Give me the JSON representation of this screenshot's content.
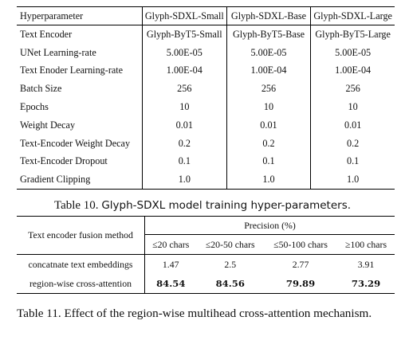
{
  "table10": {
    "headers": [
      "Hyperparameter",
      "Glyph-SDXL-Small",
      "Glyph-SDXL-Base",
      "Glyph-SDXL-Large"
    ],
    "rows": [
      [
        "Text Encoder",
        "Glyph-ByT5-Small",
        "Glyph-ByT5-Base",
        "Glyph-ByT5-Large"
      ],
      [
        "UNet Learning-rate",
        "5.00E-05",
        "5.00E-05",
        "5.00E-05"
      ],
      [
        "Text Enoder Learning-rate",
        "1.00E-04",
        "1.00E-04",
        "1.00E-04"
      ],
      [
        "Batch Size",
        "256",
        "256",
        "256"
      ],
      [
        "Epochs",
        "10",
        "10",
        "10"
      ],
      [
        "Weight Decay",
        "0.01",
        "0.01",
        "0.01"
      ],
      [
        "Text-Encoder Weight Decay",
        "0.2",
        "0.2",
        "0.2"
      ],
      [
        "Text-Encoder Dropout",
        "0.1",
        "0.1",
        "0.1"
      ],
      [
        "Gradient Clipping",
        "1.0",
        "1.0",
        "1.0"
      ]
    ],
    "caption_label": "Table 10.",
    "caption_text": "Glyph-SDXL model training hyper-parameters."
  },
  "table11": {
    "method_header": "Text encoder fusion method",
    "group_header": "Precision (%)",
    "subheaders": [
      "≤20 chars",
      "≤20-50 chars",
      "≤50-100 chars",
      "≥100 chars"
    ],
    "rows": [
      {
        "method": "concatnate text embeddings",
        "values": [
          "1.47",
          "2.5",
          "2.77",
          "3.91"
        ],
        "bold": false
      },
      {
        "method": "region-wise cross-attention",
        "values": [
          "84.54",
          "84.56",
          "79.89",
          "73.29"
        ],
        "bold": true
      }
    ],
    "caption": "Table 11.  Effect of the region-wise multihead cross-attention mechanism."
  }
}
